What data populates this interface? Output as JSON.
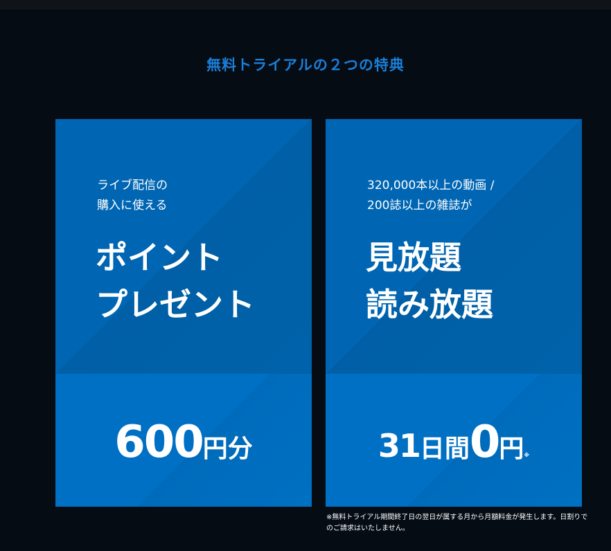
{
  "title": "無料トライアルの２つの特典",
  "cards": [
    {
      "lead1": "ライブ配信の",
      "lead2": "購入に使える",
      "big1": "ポイント",
      "big2": "プレゼント",
      "price_num": "600",
      "price_unit": "円分"
    },
    {
      "lead1": "320,000本以上の動画 /",
      "lead2": "200誌以上の雑誌が",
      "big1": "見放題",
      "big2": "読み放題",
      "price_days": "31",
      "price_days_unit": "日間",
      "price_num": "0",
      "price_unit": "円",
      "price_mark": "※"
    }
  ],
  "note": "※無料トライアル期間終了日の翌日が属する月から月額料金が発生します。日割りでのご請求はいたしません。",
  "colors": {
    "background": "#050c14",
    "title": "#1a7fd8",
    "card": "#0066b3",
    "card_lower": "#0070c4"
  }
}
